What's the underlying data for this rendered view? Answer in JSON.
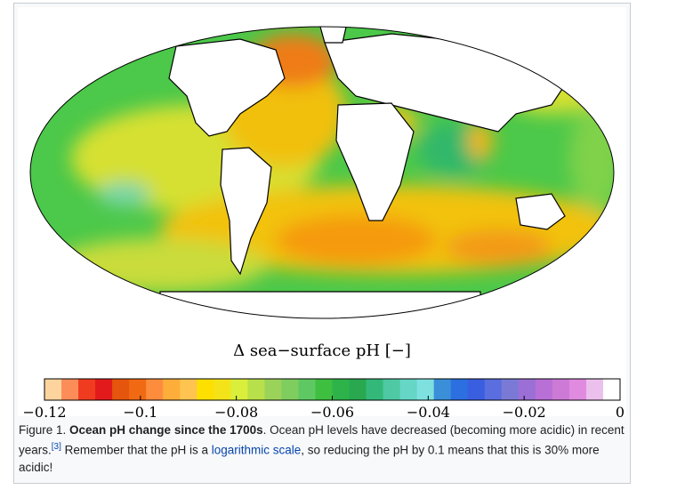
{
  "figure": {
    "legend_title": "Δ sea−surface pH [−]",
    "colorbar": {
      "min": -0.12,
      "max": 0,
      "colors": [
        "#fdd49e",
        "#fc8d59",
        "#f03b20",
        "#e31a1c",
        "#e6550d",
        "#f16913",
        "#fd8d3c",
        "#fdae3a",
        "#fec44f",
        "#fee000",
        "#f5e31a",
        "#d9ef3b",
        "#b8e04a",
        "#9bd35a",
        "#7fcd5e",
        "#5ec962",
        "#3fbf3f",
        "#2db34a",
        "#29a84f",
        "#33b87a",
        "#4fc9a3",
        "#66d6c6",
        "#7fe0e0",
        "#3b8fd9",
        "#2b6fe0",
        "#3a5ee0",
        "#5a6ee0",
        "#7a7ad6",
        "#9b6fd6",
        "#b86fd6",
        "#cc7ad6",
        "#e08ae0",
        "#ecc0ec",
        "#ffffff"
      ],
      "ticks": [
        "−0.12",
        "−0.1",
        "−0.08",
        "−0.06",
        "−0.04",
        "−0.02",
        "0"
      ]
    }
  },
  "caption": {
    "prefix": "Figure 1. ",
    "bold": "Ocean pH change since the 1700s",
    "text1": ". Ocean pH levels have decreased (becoming more acidic) in recent years.",
    "ref": "[3]",
    "text2": " Remember that the pH is a ",
    "link": "logarithmic scale",
    "text3": ", so reducing the pH by 0.1 means that this is 30% more acidic!"
  }
}
